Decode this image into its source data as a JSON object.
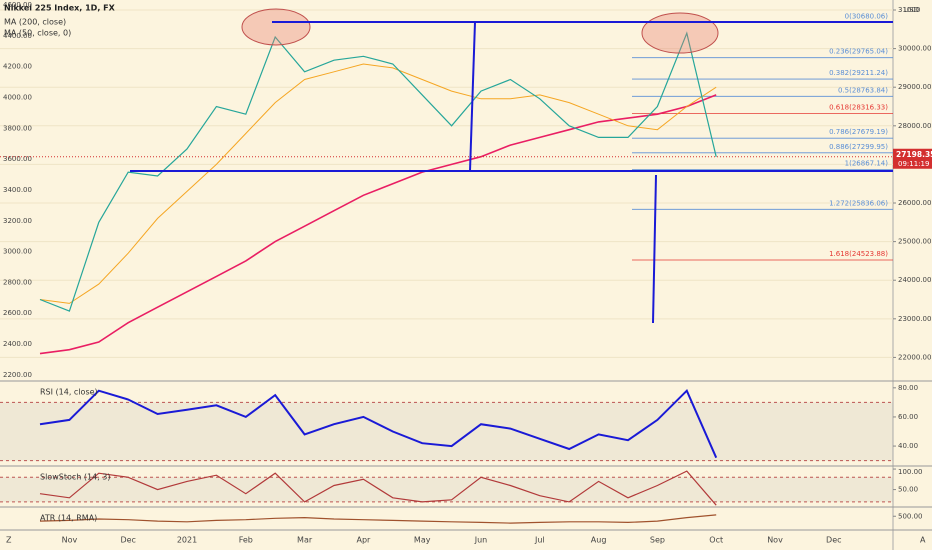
{
  "chart_data": [
    {
      "type": "line",
      "title": "Nikkei 225 Index, 1D, FX",
      "currency": "USD",
      "countdown": "09:11:19",
      "categories": [
        null,
        "Nov",
        null,
        "Dec",
        null,
        "2021",
        null,
        "Feb",
        null,
        "Mar",
        null,
        "Apr",
        null,
        "May",
        null,
        "Jun",
        null,
        "Jul",
        null,
        "Aug",
        null,
        "Sep",
        null,
        "Oct",
        null,
        "Nov",
        null,
        "Dec",
        null
      ],
      "values": [
        23500,
        23200,
        25500,
        26800,
        26700,
        27400,
        28500,
        28300,
        30300,
        29400,
        29700,
        29800,
        29600,
        28800,
        28000,
        28900,
        29200,
        28700,
        28000,
        27700,
        27700,
        28500,
        30400,
        27198.35,
        null,
        null,
        null,
        null,
        null
      ],
      "color": "#26a69a",
      "series": [
        {
          "name": "MA (200, close)",
          "color": "#e91e63",
          "values": [
            22100,
            22200,
            22400,
            22900,
            23300,
            23700,
            24100,
            24500,
            25000,
            25400,
            25800,
            26200,
            26500,
            26800,
            27000,
            27200,
            27500,
            27700,
            27900,
            28100,
            28200,
            28300,
            28500,
            28800,
            null,
            null,
            null,
            null,
            null
          ]
        },
        {
          "name": "MA (50, close, 0)",
          "color": "#f5a623",
          "values": [
            23500,
            23400,
            23900,
            24700,
            25600,
            26300,
            27000,
            27800,
            28600,
            29200,
            29400,
            29600,
            29500,
            29200,
            28900,
            28700,
            28700,
            28800,
            28600,
            28300,
            28000,
            27900,
            28500,
            29000,
            null,
            null,
            null,
            null,
            null
          ]
        }
      ],
      "ylim": [
        21415,
        31259
      ],
      "yticks": [
        {
          "value": 22000,
          "label": "22000.00"
        },
        {
          "value": 23000,
          "label": "23000.00"
        },
        {
          "value": 24000,
          "label": "24000.00"
        },
        {
          "value": 25000,
          "label": "25000.00"
        },
        {
          "value": 26000,
          "label": "26000.00"
        },
        {
          "value": 27000,
          "label": "27000.00"
        },
        {
          "value": 28000,
          "label": "28000.00"
        },
        {
          "value": 29000,
          "label": "29000.00"
        },
        {
          "value": 30000,
          "label": "30000.00"
        },
        {
          "value": 31000,
          "label": "31000"
        }
      ],
      "y2lim": [
        2167,
        4632
      ],
      "y2ticks": [
        {
          "value": 2200,
          "label": "2200.00"
        },
        {
          "value": 2400,
          "label": "2400.00"
        },
        {
          "value": 2600,
          "label": "2600.00"
        },
        {
          "value": 2800,
          "label": "2800.00"
        },
        {
          "value": 3000,
          "label": "3000.00"
        },
        {
          "value": 3200,
          "label": "3200.00"
        },
        {
          "value": 3400,
          "label": "3400.00"
        },
        {
          "value": 3600,
          "label": "3600.00"
        },
        {
          "value": 3800,
          "label": "3800.00"
        },
        {
          "value": 4000,
          "label": "4000.00"
        },
        {
          "value": 4200,
          "label": "4200.00"
        },
        {
          "value": 4400,
          "label": "4400.00"
        },
        {
          "value": 4600,
          "label": "4600.00"
        }
      ],
      "fib_levels": [
        {
          "value": 30680.06,
          "label": "0(30680.06)",
          "color": "#5b8fd6"
        },
        {
          "value": 29765.04,
          "label": "0.236(29765.04)",
          "color": "#5b8fd6"
        },
        {
          "value": 29211.24,
          "label": "0.382(29211.24)",
          "color": "#5b8fd6"
        },
        {
          "value": 28763.84,
          "label": "0.5(28763.84)",
          "color": "#5b8fd6"
        },
        {
          "value": 28316.33,
          "label": "0.618(28316.33)",
          "color": "#e53935"
        },
        {
          "value": 27679.19,
          "label": "0.786(27679.19)",
          "color": "#5b8fd6"
        },
        {
          "value": 27299.95,
          "label": "0.886(27299.95)",
          "color": "#5b8fd6"
        },
        {
          "value": 26867.14,
          "label": "1(26867.14)",
          "color": "#5b8fd6"
        },
        {
          "value": 25836.06,
          "label": "1.272(25836.06)",
          "color": "#5b8fd6"
        },
        {
          "value": 24523.88,
          "label": "1.618(24523.88)",
          "color": "#e53935"
        }
      ]
    },
    {
      "type": "line",
      "title": "RSI (14, close)",
      "color": "#1a1ad6",
      "values": [
        55,
        58,
        78,
        72,
        62,
        65,
        68,
        60,
        75,
        48,
        55,
        60,
        50,
        42,
        40,
        55,
        52,
        45,
        38,
        48,
        44,
        58,
        78,
        32,
        null,
        null,
        null,
        null,
        null
      ],
      "ylim": [
        27,
        84
      ],
      "yticks": [
        {
          "value": 40,
          "label": "40.00"
        },
        {
          "value": 60,
          "label": "60.00"
        },
        {
          "value": 80,
          "label": "80.00"
        }
      ],
      "bands": [
        30,
        70
      ]
    },
    {
      "type": "line",
      "title": "SlowStoch (14, 3)",
      "color": "#b23a3a",
      "values": [
        40,
        30,
        90,
        80,
        50,
        70,
        85,
        40,
        90,
        20,
        60,
        75,
        30,
        20,
        25,
        80,
        60,
        35,
        20,
        70,
        30,
        60,
        95,
        12,
        null,
        null,
        null,
        null,
        null
      ],
      "ylim": [
        10,
        105
      ],
      "yticks": [
        {
          "value": 50,
          "label": "50.00"
        },
        {
          "value": 100,
          "label": "100.00"
        }
      ],
      "bands": [
        20,
        80
      ]
    },
    {
      "type": "line",
      "title": "ATR (14, RMA)",
      "color": "#a0522d",
      "values": [
        430,
        440,
        460,
        450,
        430,
        420,
        440,
        450,
        470,
        480,
        460,
        450,
        440,
        430,
        420,
        410,
        400,
        410,
        420,
        420,
        410,
        430,
        480,
        520,
        null,
        null,
        null,
        null,
        null
      ],
      "ylim": [
        300,
        620
      ],
      "yticks": [
        {
          "value": 500,
          "label": "500.00"
        }
      ]
    }
  ]
}
